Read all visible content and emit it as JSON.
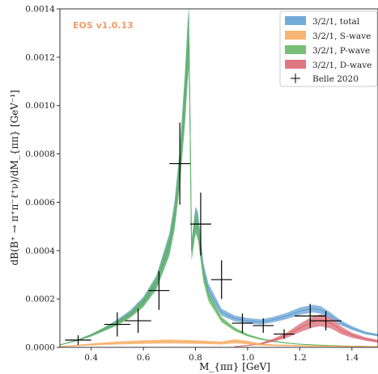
{
  "chart_data": {
    "type": "line",
    "watermark": "EOS v1.0.13",
    "xlabel": "M_{ππ} [GeV]",
    "ylabel": "dB(B⁺ → π⁺π⁻ℓ⁺ν)/dM_{ππ} [GeV⁻¹]",
    "xlim": [
      0.28,
      1.5
    ],
    "ylim": [
      0,
      0.0014
    ],
    "x_ticks": [
      0.4,
      0.6,
      0.8,
      1.0,
      1.2,
      1.4
    ],
    "x_tick_labels": [
      "0.4",
      "0.6",
      "0.8",
      "1.0",
      "1.2",
      "1.4"
    ],
    "y_ticks": [
      0,
      0.0002,
      0.0004,
      0.0006,
      0.0008,
      0.001,
      0.0012,
      0.0014
    ],
    "y_tick_labels": [
      "0.0000",
      "0.0002",
      "0.0004",
      "0.0006",
      "0.0008",
      "0.0010",
      "0.0012",
      "0.0014"
    ],
    "grid": false,
    "legend_position": "top-right",
    "colors": {
      "total": "#5b9bd0",
      "s_wave": "#f6a85a",
      "p_wave": "#5fb35f",
      "d_wave": "#d9606a",
      "data": "#000000",
      "watermark": "#f39c6b"
    },
    "series": [
      {
        "name": "3/2/1, total",
        "color_key": "total",
        "x": [
          0.28,
          0.35,
          0.4,
          0.45,
          0.5,
          0.55,
          0.6,
          0.65,
          0.7,
          0.72,
          0.74,
          0.76,
          0.77,
          0.775,
          0.785,
          0.8,
          0.81,
          0.83,
          0.85,
          0.9,
          0.95,
          1.0,
          1.05,
          1.1,
          1.15,
          1.2,
          1.25,
          1.28,
          1.32,
          1.36,
          1.4,
          1.45,
          1.5
        ],
        "y": [
          1e-05,
          3e-05,
          5e-05,
          7.5e-05,
          0.000105,
          0.00014,
          0.00019,
          0.00027,
          0.00043,
          0.00055,
          0.00075,
          0.00104,
          0.00122,
          0.00128,
          0.0004,
          0.00053,
          0.00051,
          0.00032,
          0.00024,
          0.000145,
          0.00012,
          0.00011,
          0.000105,
          0.000115,
          0.00013,
          0.00015,
          0.00016,
          0.000155,
          0.00013,
          0.0001,
          8e-05,
          6e-05,
          5e-05
        ],
        "band": 0.1
      },
      {
        "name": "3/2/1, S-wave",
        "color_key": "s_wave",
        "x": [
          0.28,
          0.4,
          0.5,
          0.6,
          0.7,
          0.8,
          0.9,
          0.95,
          1.0,
          1.05,
          1.1,
          1.2,
          1.3,
          1.4,
          1.5
        ],
        "y": [
          3e-06,
          1.2e-05,
          1.8e-05,
          2.2e-05,
          2.4e-05,
          2.2e-05,
          1.8e-05,
          2.5e-05,
          2e-05,
          1.2e-05,
          9e-06,
          7e-06,
          5e-06,
          4e-06,
          3e-06
        ],
        "band": 0.35
      },
      {
        "name": "3/2/1, P-wave",
        "color_key": "p_wave",
        "x": [
          0.28,
          0.35,
          0.4,
          0.45,
          0.5,
          0.55,
          0.6,
          0.65,
          0.7,
          0.72,
          0.74,
          0.76,
          0.77,
          0.775,
          0.785,
          0.8,
          0.81,
          0.83,
          0.85,
          0.9,
          0.95,
          1.0,
          1.05,
          1.1,
          1.15,
          1.2,
          1.3,
          1.4,
          1.5
        ],
        "y": [
          1e-05,
          3e-05,
          5e-05,
          7.5e-05,
          0.0001,
          0.000135,
          0.000185,
          0.000265,
          0.00042,
          0.00054,
          0.00074,
          0.00103,
          0.00122,
          0.00128,
          0.0004,
          0.00052,
          0.00049,
          0.0003,
          0.00021,
          0.000115,
          7.5e-05,
          5e-05,
          3.5e-05,
          2.5e-05,
          1.8e-05,
          1.3e-05,
          8e-06,
          5e-06,
          3e-06
        ],
        "band": 0.1
      },
      {
        "name": "3/2/1, D-wave",
        "color_key": "d_wave",
        "x": [
          0.95,
          1.0,
          1.05,
          1.1,
          1.15,
          1.2,
          1.25,
          1.28,
          1.32,
          1.36,
          1.4,
          1.45,
          1.5
        ],
        "y": [
          3e-06,
          8e-06,
          1.5e-05,
          3e-05,
          5e-05,
          8e-05,
          0.000105,
          0.000112,
          0.0001,
          7e-05,
          5e-05,
          3.5e-05,
          2.5e-05
        ],
        "band": 0.22
      }
    ],
    "data_series": {
      "name": "Belle 2020",
      "points": [
        {
          "x": 0.35,
          "y": 3e-05,
          "xerr": 0.05,
          "yerr": 2e-05
        },
        {
          "x": 0.5,
          "y": 9.5e-05,
          "xerr": 0.05,
          "yerr": 5e-05
        },
        {
          "x": 0.58,
          "y": 0.00011,
          "xerr": 0.05,
          "yerr": 5e-05
        },
        {
          "x": 0.66,
          "y": 0.000235,
          "xerr": 0.04,
          "yerr": 8e-05
        },
        {
          "x": 0.74,
          "y": 0.00076,
          "xerr": 0.04,
          "yerr": 0.00017
        },
        {
          "x": 0.82,
          "y": 0.00051,
          "xerr": 0.04,
          "yerr": 0.00013
        },
        {
          "x": 0.9,
          "y": 0.00028,
          "xerr": 0.04,
          "yerr": 8e-05
        },
        {
          "x": 0.98,
          "y": 0.0001,
          "xerr": 0.04,
          "yerr": 4e-05
        },
        {
          "x": 1.06,
          "y": 9e-05,
          "xerr": 0.04,
          "yerr": 3e-05
        },
        {
          "x": 1.14,
          "y": 5.5e-05,
          "xerr": 0.04,
          "yerr": 2e-05
        },
        {
          "x": 1.24,
          "y": 0.00013,
          "xerr": 0.06,
          "yerr": 5e-05
        },
        {
          "x": 1.3,
          "y": 0.00011,
          "xerr": 0.06,
          "yerr": 4e-05
        }
      ]
    }
  }
}
